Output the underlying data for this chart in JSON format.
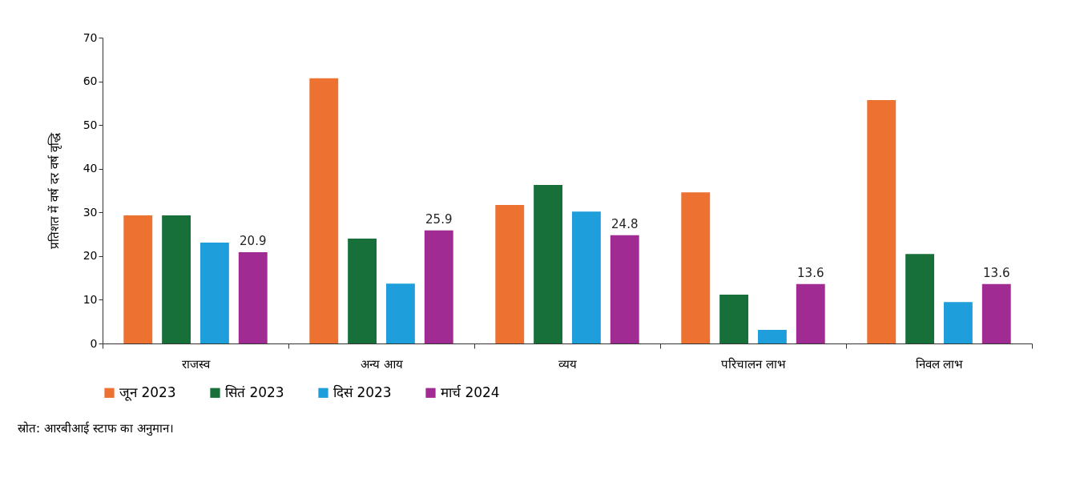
{
  "chart_data": {
    "type": "bar",
    "ylabel": "प्रतिशत में वर्ष दर वर्ष वृद्धि",
    "categories": [
      "राजस्व",
      "अन्य आय",
      "व्यय",
      "परिचालन लाभ",
      "निवल लाभ"
    ],
    "ylim": [
      0,
      70
    ],
    "yticks": [
      0,
      10,
      20,
      30,
      40,
      50,
      60,
      70
    ],
    "legend": "bottom",
    "series": [
      {
        "name": "जून 2023",
        "color": "#ed7130",
        "values": [
          29.3,
          60.7,
          31.7,
          34.6,
          55.7
        ]
      },
      {
        "name": "सितं 2023",
        "color": "#17703a",
        "values": [
          29.3,
          24.0,
          36.3,
          11.2,
          20.5
        ]
      },
      {
        "name": "दिसं 2023",
        "color": "#1e9fdb",
        "values": [
          23.1,
          13.7,
          30.2,
          3.1,
          9.5
        ]
      },
      {
        "name": "मार्च 2024",
        "color": "#a02b93",
        "values": [
          20.9,
          25.9,
          24.8,
          13.6,
          13.6
        ],
        "value_labels": [
          "20.9",
          "25.9",
          "24.8",
          "13.6",
          "13.6"
        ]
      }
    ],
    "annotations": [
      "स्रोत: आरबीआई स्टाफ का अनुमान।"
    ]
  }
}
